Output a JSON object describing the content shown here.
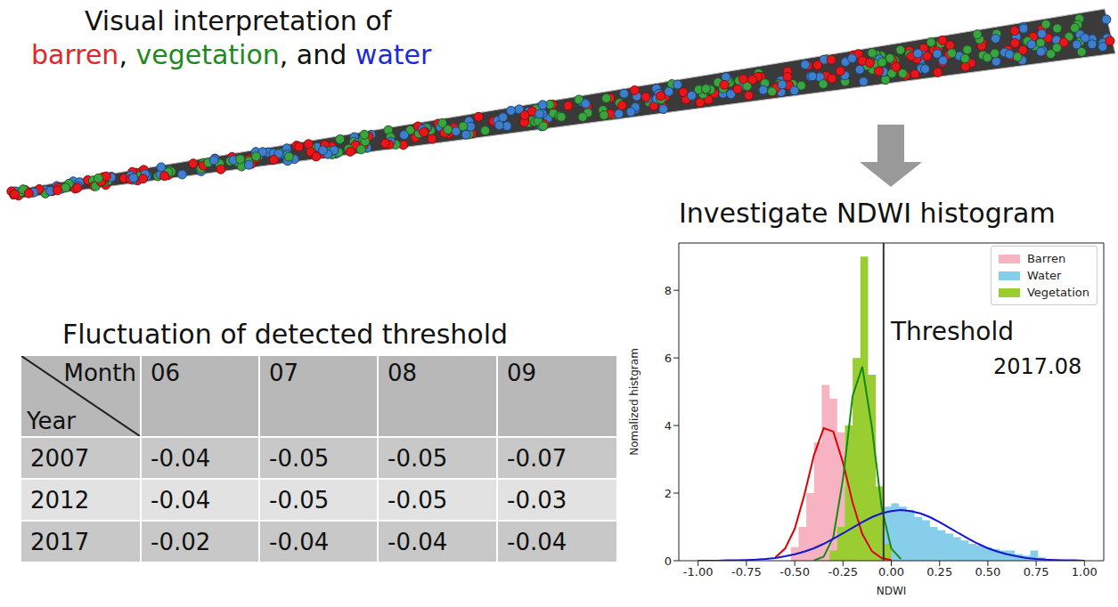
{
  "interpretation": {
    "line1": "Visual interpretation of",
    "line2": [
      {
        "text": "barren",
        "color": "#e3262a"
      },
      {
        "text": ", "
      },
      {
        "text": "vegetation",
        "color": "#1f8a1f"
      },
      {
        "text": ", and "
      },
      {
        "text": "water",
        "color": "#1c2bd6"
      }
    ]
  },
  "histogram_title": "Investigate NDWI histogram",
  "table": {
    "title": "Fluctuation of detected threshold",
    "corner": {
      "column_head": "Month",
      "row_head": "Year"
    },
    "columns": [
      "06",
      "07",
      "08",
      "09"
    ],
    "rows": [
      {
        "year": "2007",
        "values": [
          "-0.04",
          "-0.05",
          "-0.05",
          "-0.07"
        ]
      },
      {
        "year": "2012",
        "values": [
          "-0.04",
          "-0.05",
          "-0.05",
          "-0.03"
        ]
      },
      {
        "year": "2017",
        "values": [
          "-0.02",
          "-0.04",
          "-0.04",
          "-0.04"
        ]
      }
    ]
  },
  "chart_data": {
    "type": "histogram",
    "xlabel": "NDWI",
    "ylabel": "Nomalized histgram",
    "xlim": [
      -1.1,
      1.1
    ],
    "ylim": [
      0,
      9.4
    ],
    "xticks": [
      {
        "value": -1,
        "label": "-1.00"
      },
      {
        "value": -0.75,
        "label": "-0.75"
      },
      {
        "value": -0.5,
        "label": "-0.50"
      },
      {
        "value": -0.25,
        "label": "-0.25"
      },
      {
        "value": 0,
        "label": "0.00"
      },
      {
        "value": 0.25,
        "label": "0.25"
      },
      {
        "value": 0.5,
        "label": "0.50"
      },
      {
        "value": 0.75,
        "label": "0.75"
      },
      {
        "value": 1,
        "label": "1.00"
      }
    ],
    "yticks": [
      0,
      2,
      4,
      6,
      8
    ],
    "legend": "upper right",
    "threshold": {
      "x": -0.04,
      "label": "Threshold"
    },
    "annotations": [
      "2017.08"
    ],
    "bins": [
      -0.56,
      -0.52,
      -0.48,
      -0.44,
      -0.4,
      -0.36,
      -0.32,
      -0.28,
      -0.24,
      -0.2,
      -0.16,
      -0.12,
      -0.08,
      -0.04,
      0,
      0.04,
      0.08,
      0.12,
      0.16,
      0.2,
      0.24,
      0.28,
      0.32,
      0.36,
      0.4,
      0.44,
      0.48,
      0.52,
      0.56,
      0.6,
      0.64,
      0.68,
      0.72,
      0.76,
      0.8
    ],
    "series": [
      {
        "name": "Barren",
        "color": "#f7b3c2",
        "values": [
          0,
          0.4,
          1.0,
          2.0,
          3.5,
          5.2,
          4.8,
          3.8,
          2.2,
          1.4,
          0.6,
          0.2,
          0,
          0,
          0,
          0,
          0,
          0,
          0,
          0,
          0,
          0,
          0,
          0,
          0,
          0,
          0,
          0,
          0,
          0,
          0,
          0,
          0,
          0
        ]
      },
      {
        "name": "Water",
        "color": "#87ceeb",
        "values": [
          0,
          0,
          0,
          0,
          0,
          0,
          0,
          0,
          0,
          0,
          0,
          0.3,
          0.6,
          1.6,
          1.7,
          1.6,
          1.5,
          1.3,
          1.2,
          1.0,
          0.9,
          0.8,
          0.7,
          0.6,
          0.5,
          0.45,
          0.4,
          0.35,
          0.3,
          0.3,
          0.2,
          0.15,
          0.3,
          0.1
        ]
      },
      {
        "name": "Vegetation",
        "color": "#9acd32",
        "values": [
          0,
          0,
          0,
          0,
          0,
          0,
          0.3,
          1.0,
          4.0,
          6.0,
          9.0,
          5.5,
          2.2,
          0.5,
          0,
          0,
          0,
          0,
          0,
          0,
          0,
          0,
          0,
          0,
          0,
          0,
          0,
          0,
          0,
          0,
          0,
          0,
          0,
          0
        ]
      },
      {
        "type": "line",
        "color": "#e00000",
        "x": [
          -1,
          -0.95,
          -0.9,
          -0.85,
          -0.8,
          -0.75,
          -0.7,
          -0.65,
          -0.6,
          -0.55,
          -0.5,
          -0.45,
          -0.4,
          -0.35,
          -0.3,
          -0.25,
          -0.2,
          -0.15,
          -0.1,
          -0.05,
          0,
          0.05,
          0.1,
          0.15,
          0.2,
          0.25,
          0.3,
          0.35,
          0.4,
          0.45,
          0.5,
          0.55,
          0.6,
          0.65,
          0.7,
          0.75,
          0.8,
          0.85,
          0.9,
          0.95,
          1
        ],
        "values": [
          null,
          null,
          null,
          null,
          null,
          null,
          null,
          null,
          0.1,
          0.36,
          0.94,
          1.95,
          3.13,
          3.92,
          3.82,
          2.9,
          1.72,
          0.79,
          0.28,
          0.08,
          0.02,
          null,
          null,
          null,
          null,
          null,
          null,
          null,
          null,
          null,
          null,
          null,
          null,
          null,
          null,
          null,
          null,
          null,
          null,
          null,
          null
        ]
      },
      {
        "type": "line",
        "color": "#138a13",
        "x": [
          -1,
          -0.95,
          -0.9,
          -0.85,
          -0.8,
          -0.75,
          -0.7,
          -0.65,
          -0.6,
          -0.55,
          -0.5,
          -0.45,
          -0.4,
          -0.35,
          -0.3,
          -0.25,
          -0.2,
          -0.15,
          -0.1,
          -0.05,
          0,
          0.05,
          0.1,
          0.15,
          0.2,
          0.25,
          0.3,
          0.35,
          0.4,
          0.45,
          0.5,
          0.55,
          0.6,
          0.65,
          0.7,
          0.75,
          0.8,
          0.85,
          0.9,
          0.95,
          1
        ],
        "values": [
          null,
          null,
          null,
          null,
          null,
          null,
          null,
          null,
          null,
          null,
          null,
          null,
          0.01,
          0.12,
          0.7,
          2.42,
          4.88,
          5.74,
          3.93,
          1.57,
          0.36,
          0.05,
          null,
          null,
          null,
          null,
          null,
          null,
          null,
          null,
          null,
          null,
          null,
          null,
          null,
          null,
          null,
          null,
          null,
          null,
          null
        ]
      },
      {
        "type": "line",
        "color": "#1414d2",
        "x": [
          -1,
          -0.95,
          -0.9,
          -0.85,
          -0.8,
          -0.75,
          -0.7,
          -0.65,
          -0.6,
          -0.55,
          -0.5,
          -0.45,
          -0.4,
          -0.35,
          -0.3,
          -0.25,
          -0.2,
          -0.15,
          -0.1,
          -0.05,
          0,
          0.05,
          0.1,
          0.15,
          0.2,
          0.25,
          0.3,
          0.35,
          0.4,
          0.45,
          0.5,
          0.55,
          0.6,
          0.65,
          0.7,
          0.75,
          0.8,
          0.85,
          0.9,
          0.95,
          1
        ],
        "values": [
          0,
          0,
          0,
          0.01,
          0.01,
          0.02,
          0.03,
          0.05,
          0.08,
          0.13,
          0.19,
          0.27,
          0.37,
          0.5,
          0.65,
          0.81,
          0.98,
          1.14,
          1.29,
          1.4,
          1.47,
          1.5,
          1.47,
          1.4,
          1.29,
          1.14,
          0.98,
          0.81,
          0.65,
          0.5,
          0.37,
          0.27,
          0.19,
          0.13,
          0.08,
          0.05,
          0.03,
          0.02,
          0.01,
          0.01,
          0
        ]
      }
    ]
  }
}
